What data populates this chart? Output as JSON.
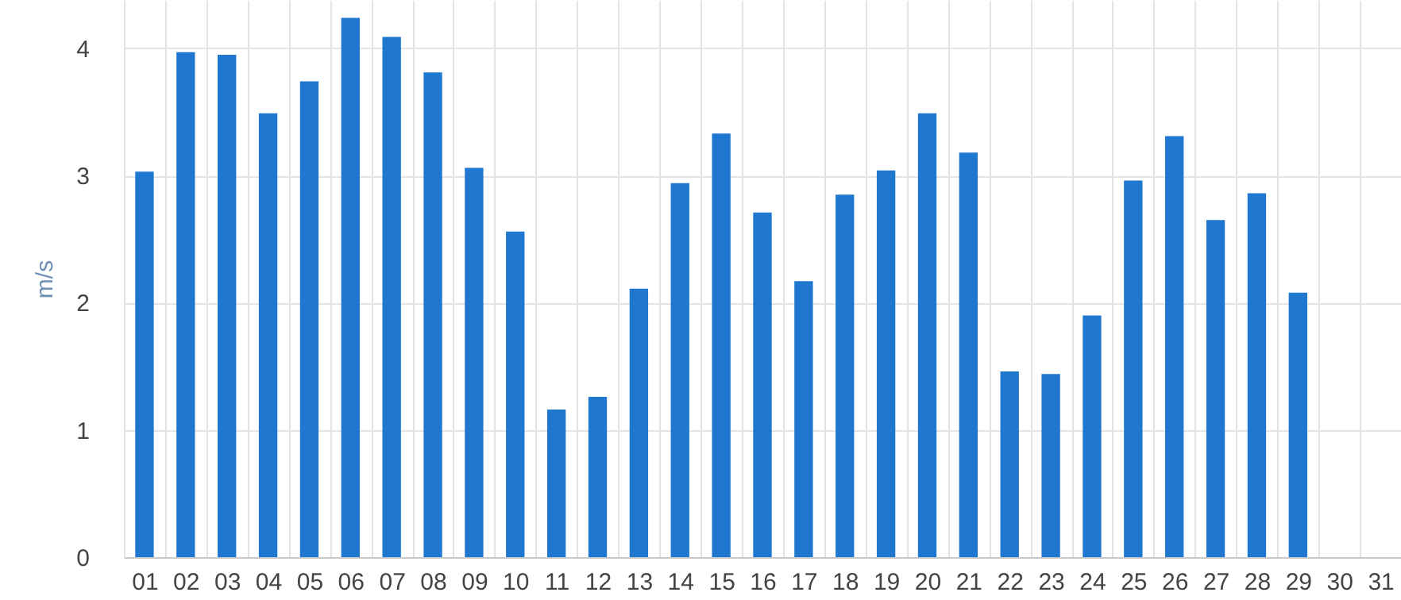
{
  "chart_data": {
    "type": "bar",
    "ylabel": "m/s",
    "categories": [
      "01",
      "02",
      "03",
      "04",
      "05",
      "06",
      "07",
      "08",
      "09",
      "10",
      "11",
      "12",
      "13",
      "14",
      "15",
      "16",
      "17",
      "18",
      "19",
      "20",
      "21",
      "22",
      "23",
      "24",
      "25",
      "26",
      "27",
      "28",
      "29",
      "30",
      "31"
    ],
    "values": [
      3.03,
      3.97,
      3.95,
      3.49,
      3.74,
      4.24,
      4.09,
      3.81,
      3.06,
      2.56,
      1.16,
      1.26,
      2.11,
      2.94,
      3.33,
      2.71,
      2.17,
      2.85,
      3.04,
      3.49,
      3.18,
      1.46,
      1.44,
      1.9,
      2.96,
      3.31,
      2.65,
      2.86,
      2.08,
      null,
      null
    ],
    "color": "#1f77d0",
    "ylim": [
      0,
      4.38
    ],
    "yticks": [
      0,
      1,
      2,
      3,
      4
    ],
    "grid": true
  }
}
